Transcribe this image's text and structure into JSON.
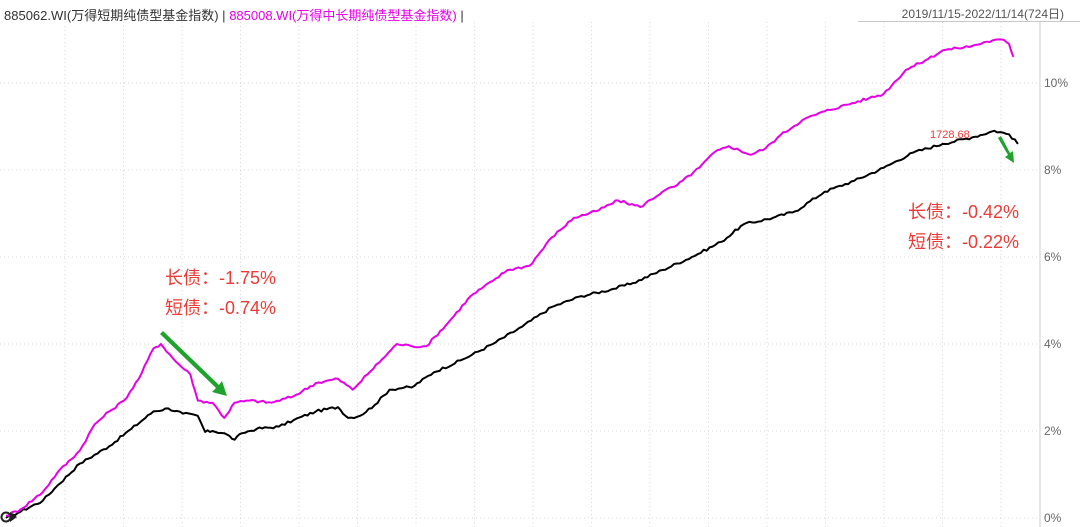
{
  "legend": {
    "series1": "885062.WI(万得短期纯债型基金指数)",
    "separator": "|",
    "series2": "885008.WI(万得中长期纯债型基金指数)",
    "trailing": "|"
  },
  "date_range": "2019/11/15-2022/11/14(724日)",
  "annotation_mid": {
    "line1": "长债：-1.75%",
    "line2": "短债：-0.74%"
  },
  "annotation_end": {
    "line1": "长债：-0.42%",
    "line2": "短债：-0.22%"
  },
  "last_value_tag": "1728.68",
  "colors": {
    "series1": "#000000",
    "series2": "#e600e6",
    "annotation": "#ea3b36",
    "arrow": "#1fa32c",
    "grid": "#d9d9d9"
  },
  "chart_data": {
    "type": "line",
    "title": "",
    "xlabel": "",
    "ylabel": "",
    "x_unit": "trading day",
    "x_range": [
      0,
      724
    ],
    "ylim": [
      0,
      10.6
    ],
    "y_ticks": [
      "0%",
      "2%",
      "4%",
      "6%",
      "8%",
      "10%"
    ],
    "y_tick_values": [
      0,
      2,
      4,
      6,
      8,
      10
    ],
    "grid": true,
    "series": [
      {
        "name": "885062.WI(万得短期纯债型基金指数)",
        "color": "#000000",
        "points": [
          [
            0,
            0
          ],
          [
            10,
            0.15
          ],
          [
            25,
            0.4
          ],
          [
            35,
            0.75
          ],
          [
            50,
            1.25
          ],
          [
            70,
            1.65
          ],
          [
            85,
            2.05
          ],
          [
            100,
            2.45
          ],
          [
            110,
            2.52
          ],
          [
            120,
            2.4
          ],
          [
            130,
            2.35
          ],
          [
            135,
            1.98
          ],
          [
            140,
            2.0
          ],
          [
            148,
            1.95
          ],
          [
            155,
            1.8
          ],
          [
            160,
            1.95
          ],
          [
            170,
            2.05
          ],
          [
            185,
            2.1
          ],
          [
            195,
            2.25
          ],
          [
            210,
            2.45
          ],
          [
            225,
            2.55
          ],
          [
            232,
            2.3
          ],
          [
            240,
            2.35
          ],
          [
            250,
            2.6
          ],
          [
            260,
            2.95
          ],
          [
            270,
            3.0
          ],
          [
            275,
            3.0
          ],
          [
            290,
            3.35
          ],
          [
            310,
            3.65
          ],
          [
            330,
            4.0
          ],
          [
            350,
            4.4
          ],
          [
            370,
            4.85
          ],
          [
            390,
            5.1
          ],
          [
            410,
            5.25
          ],
          [
            425,
            5.4
          ],
          [
            445,
            5.7
          ],
          [
            465,
            6.0
          ],
          [
            485,
            6.35
          ],
          [
            500,
            6.75
          ],
          [
            520,
            6.9
          ],
          [
            535,
            7.05
          ],
          [
            555,
            7.5
          ],
          [
            575,
            7.75
          ],
          [
            595,
            8.05
          ],
          [
            615,
            8.4
          ],
          [
            635,
            8.6
          ],
          [
            655,
            8.75
          ],
          [
            670,
            8.9
          ],
          [
            680,
            8.82
          ],
          [
            686,
            8.6
          ]
        ]
      },
      {
        "name": "885008.WI(万得中长期纯债型基金指数)",
        "color": "#e600e6",
        "points": [
          [
            0,
            0.05
          ],
          [
            10,
            0.2
          ],
          [
            25,
            0.6
          ],
          [
            35,
            1.05
          ],
          [
            50,
            1.55
          ],
          [
            60,
            2.15
          ],
          [
            70,
            2.45
          ],
          [
            80,
            2.7
          ],
          [
            90,
            3.2
          ],
          [
            100,
            3.9
          ],
          [
            105,
            4.0
          ],
          [
            115,
            3.6
          ],
          [
            125,
            3.3
          ],
          [
            130,
            2.7
          ],
          [
            140,
            2.65
          ],
          [
            148,
            2.3
          ],
          [
            155,
            2.65
          ],
          [
            165,
            2.7
          ],
          [
            180,
            2.65
          ],
          [
            195,
            2.8
          ],
          [
            210,
            3.1
          ],
          [
            225,
            3.2
          ],
          [
            235,
            2.95
          ],
          [
            245,
            3.3
          ],
          [
            255,
            3.65
          ],
          [
            265,
            4.0
          ],
          [
            275,
            3.95
          ],
          [
            285,
            3.95
          ],
          [
            300,
            4.5
          ],
          [
            315,
            5.1
          ],
          [
            330,
            5.45
          ],
          [
            340,
            5.7
          ],
          [
            355,
            5.8
          ],
          [
            370,
            6.45
          ],
          [
            385,
            6.9
          ],
          [
            400,
            7.05
          ],
          [
            415,
            7.3
          ],
          [
            430,
            7.15
          ],
          [
            445,
            7.5
          ],
          [
            455,
            7.65
          ],
          [
            470,
            8.05
          ],
          [
            480,
            8.4
          ],
          [
            490,
            8.55
          ],
          [
            505,
            8.35
          ],
          [
            515,
            8.5
          ],
          [
            525,
            8.8
          ],
          [
            540,
            9.15
          ],
          [
            555,
            9.35
          ],
          [
            570,
            9.5
          ],
          [
            585,
            9.65
          ],
          [
            595,
            9.75
          ],
          [
            610,
            10.3
          ],
          [
            625,
            10.55
          ],
          [
            635,
            10.75
          ],
          [
            645,
            10.8
          ],
          [
            655,
            10.85
          ],
          [
            665,
            10.95
          ],
          [
            675,
            11.0
          ],
          [
            680,
            10.9
          ],
          [
            683,
            10.6
          ]
        ]
      }
    ]
  }
}
